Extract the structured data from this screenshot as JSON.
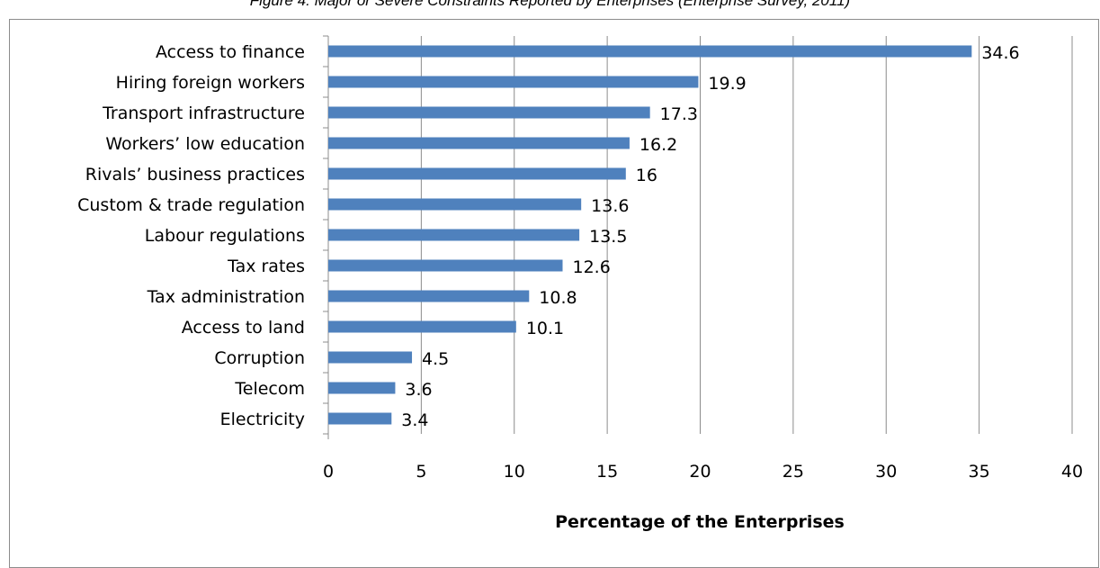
{
  "caption": "Figure 4: Major or Severe Constraints Reported by Enterprises (Enterprise Survey, 2011)",
  "chart_data": {
    "type": "bar",
    "orientation": "horizontal",
    "categories": [
      "Access to finance",
      "Hiring foreign workers",
      "Transport infrastructure",
      "Workers’ low education",
      "Rivals’ business practices",
      "Custom & trade regulation",
      "Labour regulations",
      "Tax rates",
      "Tax administration",
      "Access to land",
      "Corruption",
      "Telecom",
      "Electricity"
    ],
    "values": [
      34.6,
      19.9,
      17.3,
      16.2,
      16,
      13.6,
      13.5,
      12.6,
      10.8,
      10.1,
      4.5,
      3.6,
      3.4
    ],
    "data_labels": [
      "34.6",
      "19.9",
      "17.3",
      "16.2",
      "16",
      "13.6",
      "13.5",
      "12.6",
      "10.8",
      "10.1",
      "4.5",
      "3.6",
      "3.4"
    ],
    "xticks": [
      "0",
      "5",
      "10",
      "15",
      "20",
      "25",
      "30",
      "35",
      "40"
    ],
    "xlabel": "Percentage of the Enterprises",
    "ylabel": "",
    "xlim": [
      0,
      40
    ],
    "grid": true,
    "legend": "none",
    "colors": {
      "bar": "#4f81bd",
      "grid": "#8c8c8c",
      "axis": "#8c8c8c"
    }
  }
}
